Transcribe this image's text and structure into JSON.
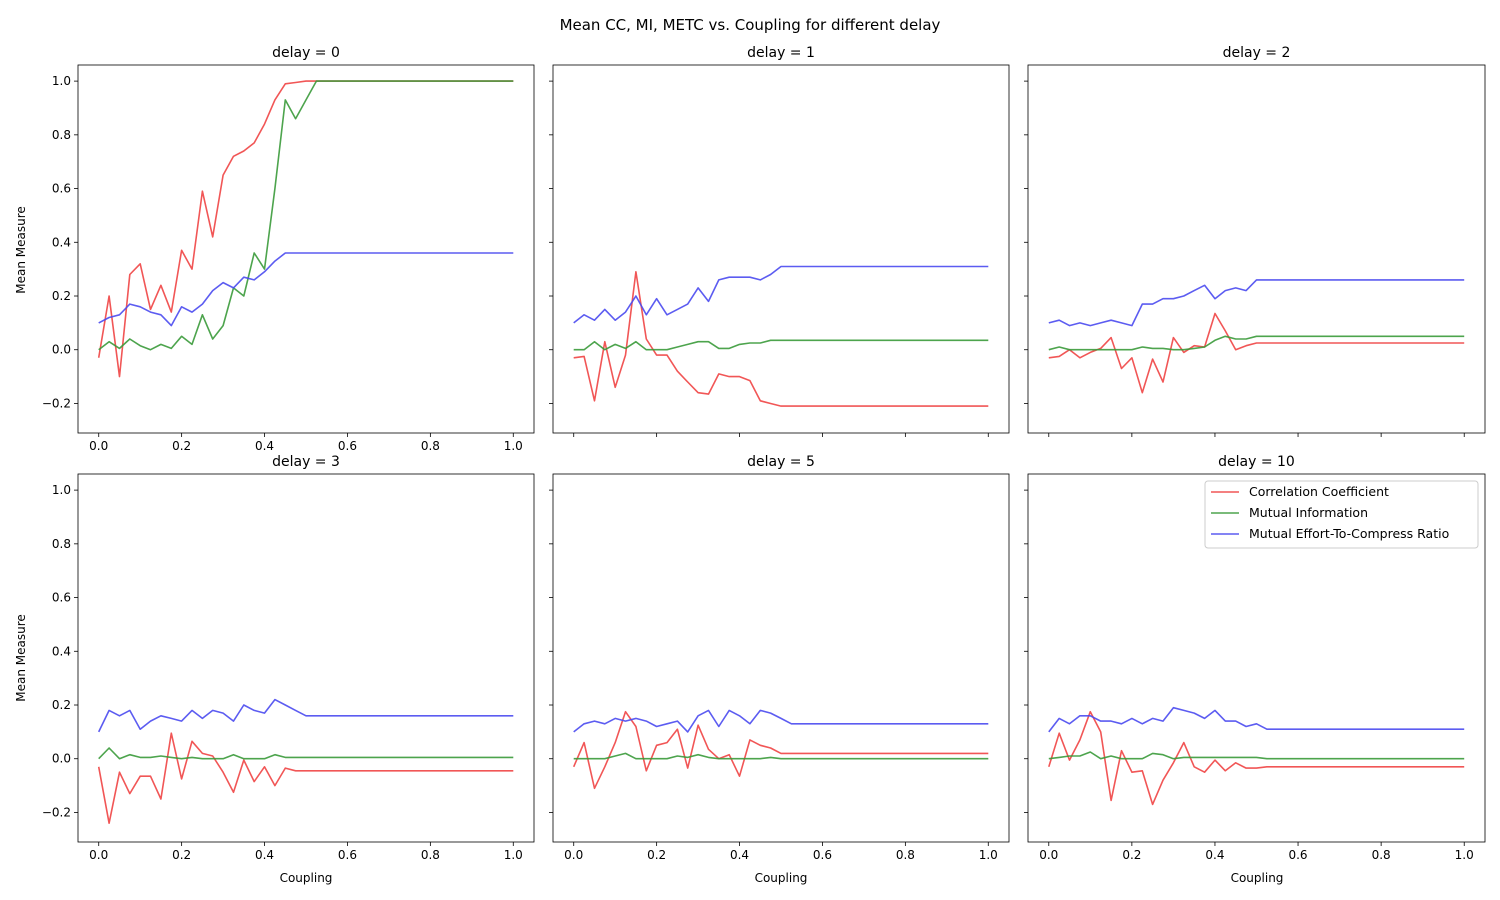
{
  "figure": {
    "suptitle": "Mean CC, MI, METC vs. Coupling for different delay",
    "xlabel": "Coupling",
    "ylabel": "Mean Measure",
    "legend": {
      "placement": "upper-right of last subplot",
      "entries": [
        "Correlation Coefficient",
        "Mutual Information",
        "Mutual Effort-To-Compress Ratio"
      ]
    },
    "colors": {
      "cc": "#ef4444",
      "mi": "#3a9a3a",
      "metc": "#4a4aef"
    }
  },
  "chart_data": [
    {
      "type": "line",
      "title": "delay = 0",
      "xlim": [
        -0.05,
        1.05
      ],
      "ylim": [
        -0.31,
        1.06
      ],
      "xticks": [
        "0.0",
        "0.2",
        "0.4",
        "0.6",
        "0.8",
        "1.0"
      ],
      "yticks": [
        "−0.2",
        "0.0",
        "0.2",
        "0.4",
        "0.6",
        "0.8",
        "1.0"
      ],
      "series": [
        {
          "name": "Correlation Coefficient",
          "x": [
            0,
            0.025,
            0.05,
            0.075,
            0.1,
            0.125,
            0.15,
            0.175,
            0.2,
            0.225,
            0.25,
            0.275,
            0.3,
            0.325,
            0.35,
            0.375,
            0.4,
            0.425,
            0.45,
            0.475,
            0.5,
            0.525,
            1.0
          ],
          "values": [
            -0.03,
            0.2,
            -0.1,
            0.28,
            0.32,
            0.15,
            0.24,
            0.14,
            0.37,
            0.3,
            0.59,
            0.42,
            0.65,
            0.72,
            0.74,
            0.77,
            0.84,
            0.93,
            0.99,
            0.995,
            1.0,
            1.0,
            1.0
          ]
        },
        {
          "name": "Mutual Information",
          "x": [
            0,
            0.025,
            0.05,
            0.075,
            0.1,
            0.125,
            0.15,
            0.175,
            0.2,
            0.225,
            0.25,
            0.275,
            0.3,
            0.325,
            0.35,
            0.375,
            0.4,
            0.425,
            0.45,
            0.475,
            0.5,
            0.525,
            1.0
          ],
          "values": [
            0.0,
            0.03,
            0.005,
            0.04,
            0.015,
            0.0,
            0.02,
            0.005,
            0.05,
            0.02,
            0.13,
            0.04,
            0.09,
            0.23,
            0.2,
            0.36,
            0.3,
            0.6,
            0.93,
            0.86,
            0.93,
            1.0,
            1.0
          ]
        },
        {
          "name": "Mutual Effort-To-Compress Ratio",
          "x": [
            0,
            0.025,
            0.05,
            0.075,
            0.1,
            0.125,
            0.15,
            0.175,
            0.2,
            0.225,
            0.25,
            0.275,
            0.3,
            0.325,
            0.35,
            0.375,
            0.4,
            0.425,
            0.45,
            1.0
          ],
          "values": [
            0.1,
            0.12,
            0.13,
            0.17,
            0.16,
            0.14,
            0.13,
            0.09,
            0.16,
            0.14,
            0.17,
            0.22,
            0.25,
            0.23,
            0.27,
            0.26,
            0.29,
            0.33,
            0.36,
            0.36
          ]
        }
      ]
    },
    {
      "type": "line",
      "title": "delay = 1",
      "xlim": [
        -0.05,
        1.05
      ],
      "ylim": [
        -0.31,
        1.06
      ],
      "xticks": [],
      "yticks": [],
      "series": [
        {
          "name": "Correlation Coefficient",
          "x": [
            0,
            0.025,
            0.05,
            0.075,
            0.1,
            0.125,
            0.15,
            0.175,
            0.2,
            0.225,
            0.25,
            0.275,
            0.3,
            0.325,
            0.35,
            0.375,
            0.4,
            0.425,
            0.45,
            0.475,
            0.5,
            1.0
          ],
          "values": [
            -0.03,
            -0.025,
            -0.19,
            0.03,
            -0.14,
            -0.02,
            0.29,
            0.04,
            -0.02,
            -0.02,
            -0.08,
            -0.12,
            -0.16,
            -0.165,
            -0.09,
            -0.1,
            -0.1,
            -0.115,
            -0.19,
            -0.2,
            -0.21,
            -0.21
          ]
        },
        {
          "name": "Mutual Information",
          "x": [
            0,
            0.025,
            0.05,
            0.075,
            0.1,
            0.125,
            0.15,
            0.175,
            0.2,
            0.225,
            0.25,
            0.275,
            0.3,
            0.325,
            0.35,
            0.375,
            0.4,
            0.425,
            0.45,
            0.475,
            1.0
          ],
          "values": [
            0.0,
            0.0,
            0.03,
            0.0,
            0.02,
            0.005,
            0.03,
            0.0,
            0.0,
            0.0,
            0.01,
            0.02,
            0.03,
            0.03,
            0.005,
            0.005,
            0.02,
            0.025,
            0.025,
            0.035,
            0.035
          ]
        },
        {
          "name": "Mutual Effort-To-Compress Ratio",
          "x": [
            0,
            0.025,
            0.05,
            0.075,
            0.1,
            0.125,
            0.15,
            0.175,
            0.2,
            0.225,
            0.25,
            0.275,
            0.3,
            0.325,
            0.35,
            0.375,
            0.4,
            0.425,
            0.45,
            0.475,
            0.5,
            1.0
          ],
          "values": [
            0.1,
            0.13,
            0.11,
            0.15,
            0.11,
            0.14,
            0.2,
            0.13,
            0.19,
            0.13,
            0.15,
            0.17,
            0.23,
            0.18,
            0.26,
            0.27,
            0.27,
            0.27,
            0.26,
            0.28,
            0.31,
            0.31
          ]
        }
      ]
    },
    {
      "type": "line",
      "title": "delay = 2",
      "xlim": [
        -0.05,
        1.05
      ],
      "ylim": [
        -0.31,
        1.06
      ],
      "xticks": [],
      "yticks": [],
      "series": [
        {
          "name": "Correlation Coefficient",
          "x": [
            0,
            0.025,
            0.05,
            0.075,
            0.1,
            0.125,
            0.15,
            0.175,
            0.2,
            0.225,
            0.25,
            0.275,
            0.3,
            0.325,
            0.35,
            0.375,
            0.4,
            0.425,
            0.45,
            0.475,
            0.5,
            1.0
          ],
          "values": [
            -0.03,
            -0.025,
            0.0,
            -0.03,
            -0.01,
            0.005,
            0.045,
            -0.07,
            -0.03,
            -0.16,
            -0.035,
            -0.12,
            0.045,
            -0.01,
            0.015,
            0.01,
            0.135,
            0.07,
            0.0,
            0.015,
            0.025,
            0.025
          ]
        },
        {
          "name": "Mutual Information",
          "x": [
            0,
            0.025,
            0.05,
            0.075,
            0.1,
            0.125,
            0.15,
            0.175,
            0.2,
            0.225,
            0.25,
            0.275,
            0.3,
            0.325,
            0.35,
            0.375,
            0.4,
            0.425,
            0.45,
            0.475,
            0.5,
            1.0
          ],
          "values": [
            0.0,
            0.01,
            0.0,
            0.0,
            0.0,
            0.0,
            0.0,
            0.0,
            0.0,
            0.01,
            0.005,
            0.005,
            0.0,
            0.0,
            0.005,
            0.01,
            0.035,
            0.05,
            0.04,
            0.04,
            0.05,
            0.05
          ]
        },
        {
          "name": "Mutual Effort-To-Compress Ratio",
          "x": [
            0,
            0.025,
            0.05,
            0.075,
            0.1,
            0.125,
            0.15,
            0.175,
            0.2,
            0.225,
            0.25,
            0.275,
            0.3,
            0.325,
            0.35,
            0.375,
            0.4,
            0.425,
            0.45,
            0.475,
            0.5,
            1.0
          ],
          "values": [
            0.1,
            0.11,
            0.09,
            0.1,
            0.09,
            0.1,
            0.11,
            0.1,
            0.09,
            0.17,
            0.17,
            0.19,
            0.19,
            0.2,
            0.22,
            0.24,
            0.19,
            0.22,
            0.23,
            0.22,
            0.26,
            0.26
          ]
        }
      ]
    },
    {
      "type": "line",
      "title": "delay = 3",
      "xlim": [
        -0.05,
        1.05
      ],
      "ylim": [
        -0.31,
        1.06
      ],
      "xticks": [
        "0.0",
        "0.2",
        "0.4",
        "0.6",
        "0.8",
        "1.0"
      ],
      "yticks": [
        "−0.2",
        "0.0",
        "0.2",
        "0.4",
        "0.6",
        "0.8",
        "1.0"
      ],
      "series": [
        {
          "name": "Correlation Coefficient",
          "x": [
            0,
            0.025,
            0.05,
            0.075,
            0.1,
            0.125,
            0.15,
            0.175,
            0.2,
            0.225,
            0.25,
            0.275,
            0.3,
            0.325,
            0.35,
            0.375,
            0.4,
            0.425,
            0.45,
            0.475,
            1.0
          ],
          "values": [
            -0.03,
            -0.24,
            -0.05,
            -0.13,
            -0.065,
            -0.065,
            -0.15,
            0.095,
            -0.075,
            0.065,
            0.02,
            0.01,
            -0.05,
            -0.125,
            -0.005,
            -0.085,
            -0.03,
            -0.1,
            -0.035,
            -0.045,
            -0.045
          ]
        },
        {
          "name": "Mutual Information",
          "x": [
            0,
            0.025,
            0.05,
            0.075,
            0.1,
            0.125,
            0.15,
            0.175,
            0.2,
            0.225,
            0.25,
            0.275,
            0.3,
            0.325,
            0.35,
            0.375,
            0.4,
            0.425,
            0.45,
            0.475,
            1.0
          ],
          "values": [
            0.0,
            0.04,
            0.0,
            0.015,
            0.005,
            0.005,
            0.01,
            0.005,
            0.0,
            0.005,
            0.0,
            0.0,
            0.0,
            0.015,
            0.0,
            0.0,
            0.0,
            0.015,
            0.005,
            0.005,
            0.005
          ]
        },
        {
          "name": "Mutual Effort-To-Compress Ratio",
          "x": [
            0,
            0.025,
            0.05,
            0.075,
            0.1,
            0.125,
            0.15,
            0.175,
            0.2,
            0.225,
            0.25,
            0.275,
            0.3,
            0.325,
            0.35,
            0.375,
            0.4,
            0.425,
            0.45,
            0.475,
            0.5,
            1.0
          ],
          "values": [
            0.1,
            0.18,
            0.16,
            0.18,
            0.11,
            0.14,
            0.16,
            0.15,
            0.14,
            0.18,
            0.15,
            0.18,
            0.17,
            0.14,
            0.2,
            0.18,
            0.17,
            0.22,
            0.2,
            0.18,
            0.16,
            0.16
          ]
        }
      ]
    },
    {
      "type": "line",
      "title": "delay = 5",
      "xlim": [
        -0.05,
        1.05
      ],
      "ylim": [
        -0.31,
        1.06
      ],
      "xticks": [
        "0.0",
        "0.2",
        "0.4",
        "0.6",
        "0.8",
        "1.0"
      ],
      "yticks": [],
      "series": [
        {
          "name": "Correlation Coefficient",
          "x": [
            0,
            0.025,
            0.05,
            0.075,
            0.1,
            0.125,
            0.15,
            0.175,
            0.2,
            0.225,
            0.25,
            0.275,
            0.3,
            0.325,
            0.35,
            0.375,
            0.4,
            0.425,
            0.45,
            0.475,
            0.5,
            1.0
          ],
          "values": [
            -0.03,
            0.06,
            -0.11,
            -0.03,
            0.06,
            0.175,
            0.12,
            -0.045,
            0.05,
            0.06,
            0.11,
            -0.035,
            0.125,
            0.035,
            0.0,
            0.015,
            -0.065,
            0.07,
            0.05,
            0.04,
            0.02,
            0.02
          ]
        },
        {
          "name": "Mutual Information",
          "x": [
            0,
            0.025,
            0.05,
            0.075,
            0.1,
            0.125,
            0.15,
            0.175,
            0.2,
            0.225,
            0.25,
            0.275,
            0.3,
            0.325,
            0.35,
            0.375,
            0.4,
            0.425,
            0.45,
            0.475,
            0.5,
            1.0
          ],
          "values": [
            0.0,
            0.0,
            0.0,
            0.0,
            0.01,
            0.02,
            0.0,
            0.0,
            0.0,
            0.0,
            0.01,
            0.005,
            0.015,
            0.005,
            0.0,
            0.0,
            0.0,
            0.0,
            0.0,
            0.005,
            0.0,
            0.0
          ]
        },
        {
          "name": "Mutual Effort-To-Compress Ratio",
          "x": [
            0,
            0.025,
            0.05,
            0.075,
            0.1,
            0.125,
            0.15,
            0.175,
            0.2,
            0.225,
            0.25,
            0.275,
            0.3,
            0.325,
            0.35,
            0.375,
            0.4,
            0.425,
            0.45,
            0.475,
            0.5,
            0.525,
            1.0
          ],
          "values": [
            0.1,
            0.13,
            0.14,
            0.13,
            0.15,
            0.14,
            0.15,
            0.14,
            0.12,
            0.13,
            0.14,
            0.1,
            0.16,
            0.18,
            0.12,
            0.18,
            0.16,
            0.13,
            0.18,
            0.17,
            0.15,
            0.13,
            0.13
          ]
        }
      ]
    },
    {
      "type": "line",
      "title": "delay = 10",
      "xlim": [
        -0.05,
        1.05
      ],
      "ylim": [
        -0.31,
        1.06
      ],
      "xticks": [
        "0.0",
        "0.2",
        "0.4",
        "0.6",
        "0.8",
        "1.0"
      ],
      "yticks": [],
      "series": [
        {
          "name": "Correlation Coefficient",
          "x": [
            0,
            0.025,
            0.05,
            0.075,
            0.1,
            0.125,
            0.15,
            0.175,
            0.2,
            0.225,
            0.25,
            0.275,
            0.3,
            0.325,
            0.35,
            0.375,
            0.4,
            0.425,
            0.45,
            0.475,
            0.5,
            0.525,
            1.0
          ],
          "values": [
            -0.03,
            0.095,
            -0.005,
            0.07,
            0.175,
            0.1,
            -0.155,
            0.03,
            -0.05,
            -0.045,
            -0.17,
            -0.08,
            -0.015,
            0.06,
            -0.03,
            -0.05,
            -0.005,
            -0.045,
            -0.015,
            -0.035,
            -0.035,
            -0.03,
            -0.03
          ]
        },
        {
          "name": "Mutual Information",
          "x": [
            0,
            0.025,
            0.05,
            0.075,
            0.1,
            0.125,
            0.15,
            0.175,
            0.2,
            0.225,
            0.25,
            0.275,
            0.3,
            0.325,
            0.35,
            0.375,
            0.4,
            0.425,
            0.45,
            0.475,
            0.5,
            0.525,
            1.0
          ],
          "values": [
            0.0,
            0.005,
            0.01,
            0.01,
            0.025,
            0.0,
            0.01,
            0.0,
            0.0,
            0.0,
            0.02,
            0.015,
            0.0,
            0.005,
            0.005,
            0.005,
            0.005,
            0.005,
            0.005,
            0.005,
            0.005,
            0.0,
            0.0
          ]
        },
        {
          "name": "Mutual Effort-To-Compress Ratio",
          "x": [
            0,
            0.025,
            0.05,
            0.075,
            0.1,
            0.125,
            0.15,
            0.175,
            0.2,
            0.225,
            0.25,
            0.275,
            0.3,
            0.325,
            0.35,
            0.375,
            0.4,
            0.425,
            0.45,
            0.475,
            0.5,
            0.525,
            1.0
          ],
          "values": [
            0.1,
            0.15,
            0.13,
            0.16,
            0.16,
            0.14,
            0.14,
            0.13,
            0.15,
            0.13,
            0.15,
            0.14,
            0.19,
            0.18,
            0.17,
            0.15,
            0.18,
            0.14,
            0.14,
            0.12,
            0.13,
            0.11,
            0.11
          ]
        }
      ]
    }
  ]
}
